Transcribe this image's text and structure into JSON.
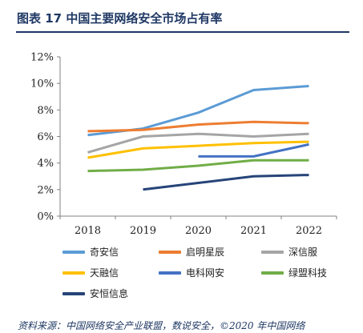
{
  "title": "图表 17 中国主要网络安全市场占有率",
  "source": "资料来源：中国网络安全产业联盟，数说安全，©2020 年中国网络",
  "chart_data": {
    "type": "line",
    "categories": [
      "2018",
      "2019",
      "2020",
      "2021",
      "2022"
    ],
    "ylim": [
      0,
      12
    ],
    "yticks": [
      0,
      2,
      4,
      6,
      8,
      10,
      12
    ],
    "ytick_labels": [
      "0%",
      "2%",
      "4%",
      "6%",
      "8%",
      "10%",
      "12%"
    ],
    "grid": false,
    "legend_position": "bottom",
    "series": [
      {
        "name": "奇安信",
        "color": "#5b9bd5",
        "values": [
          6.1,
          6.6,
          7.8,
          9.5,
          9.8
        ]
      },
      {
        "name": "启明星辰",
        "color": "#ed7d31",
        "values": [
          6.4,
          6.5,
          6.9,
          7.1,
          7.0
        ]
      },
      {
        "name": "深信服",
        "color": "#a5a5a5",
        "values": [
          4.8,
          6.0,
          6.2,
          6.0,
          6.2
        ]
      },
      {
        "name": "天融信",
        "color": "#ffc000",
        "values": [
          4.4,
          5.1,
          5.3,
          5.5,
          5.6
        ]
      },
      {
        "name": "电科网安",
        "color": "#4472c4",
        "values": [
          null,
          null,
          4.5,
          4.5,
          5.4
        ]
      },
      {
        "name": "绿盟科技",
        "color": "#70ad47",
        "values": [
          3.4,
          3.5,
          3.8,
          4.2,
          4.2
        ]
      },
      {
        "name": "安恒信息",
        "color": "#264478",
        "values": [
          null,
          2.0,
          2.5,
          3.0,
          3.1
        ]
      }
    ]
  }
}
